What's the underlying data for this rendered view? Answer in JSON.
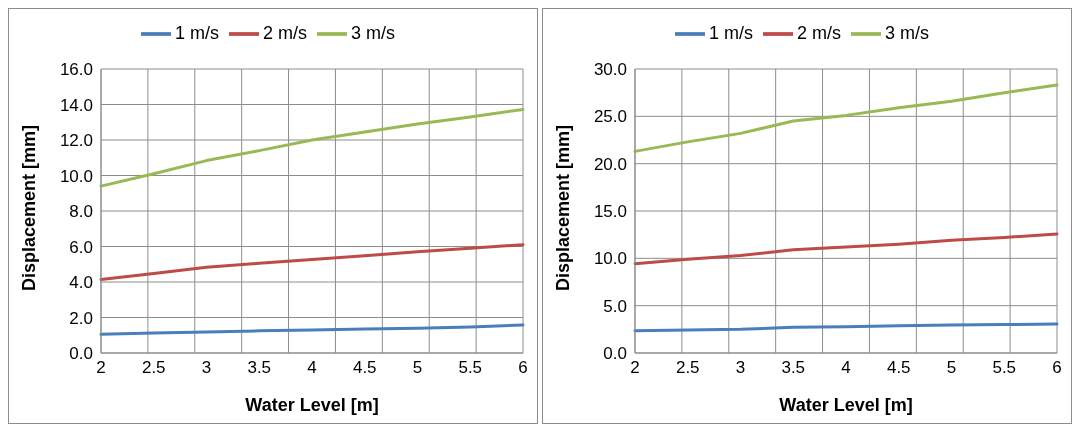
{
  "chart_data": [
    {
      "type": "line",
      "xlabel": "Water Level [m]",
      "ylabel": "Displacement [mm]",
      "categories": [
        "2",
        "2.5",
        "3",
        "3.5",
        "4",
        "4.5",
        "5",
        "5.5",
        "6"
      ],
      "series": [
        {
          "name": "1 m/s",
          "color": "#4a7ebb",
          "values": [
            1.05,
            1.12,
            1.18,
            1.25,
            1.3,
            1.35,
            1.4,
            1.47,
            1.58
          ]
        },
        {
          "name": "2 m/s",
          "color": "#be4b48",
          "values": [
            4.14,
            4.48,
            4.83,
            5.05,
            5.27,
            5.48,
            5.7,
            5.9,
            6.1
          ]
        },
        {
          "name": "3 m/s",
          "color": "#98b954",
          "values": [
            9.4,
            10.1,
            10.84,
            11.4,
            12.0,
            12.45,
            12.9,
            13.3,
            13.72
          ]
        }
      ],
      "ylim": [
        0,
        16
      ],
      "yticks": [
        {
          "value": 0,
          "label": "0.0"
        },
        {
          "value": 2,
          "label": "2.0"
        },
        {
          "value": 4,
          "label": "4.0"
        },
        {
          "value": 6,
          "label": "6.0"
        },
        {
          "value": 8,
          "label": "8.0"
        },
        {
          "value": 10,
          "label": "10.0"
        },
        {
          "value": 12,
          "label": "12.0"
        },
        {
          "value": 14,
          "label": "14.0"
        },
        {
          "value": 16,
          "label": "16.0"
        }
      ],
      "grid": true,
      "legend": "top",
      "marker": "none",
      "line_style": "solid"
    },
    {
      "type": "line",
      "xlabel": "Water Level [m]",
      "ylabel": "Displacement [mm]",
      "categories": [
        "2",
        "2.5",
        "3",
        "3.5",
        "4",
        "4.5",
        "5",
        "5.5",
        "6"
      ],
      "series": [
        {
          "name": "1 m/s",
          "color": "#4a7ebb",
          "values": [
            2.36,
            2.42,
            2.5,
            2.72,
            2.78,
            2.88,
            2.95,
            3.0,
            3.07
          ]
        },
        {
          "name": "2 m/s",
          "color": "#be4b48",
          "values": [
            9.43,
            9.9,
            10.3,
            10.9,
            11.2,
            11.5,
            11.9,
            12.2,
            12.57
          ]
        },
        {
          "name": "3 m/s",
          "color": "#98b954",
          "values": [
            21.3,
            22.3,
            23.2,
            24.5,
            25.1,
            25.9,
            26.6,
            27.5,
            28.3
          ]
        }
      ],
      "ylim": [
        0,
        30
      ],
      "yticks": [
        {
          "value": 0,
          "label": "0.0"
        },
        {
          "value": 5,
          "label": "5.0"
        },
        {
          "value": 10,
          "label": "10.0"
        },
        {
          "value": 15,
          "label": "15.0"
        },
        {
          "value": 20,
          "label": "20.0"
        },
        {
          "value": 25,
          "label": "25.0"
        },
        {
          "value": 30,
          "label": "30.0"
        }
      ],
      "grid": true,
      "legend": "top",
      "marker": "none",
      "line_style": "solid"
    }
  ]
}
